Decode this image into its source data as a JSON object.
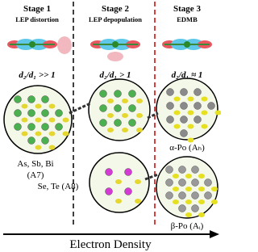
{
  "stages": [
    {
      "title": "Stage 1",
      "subtitle": "LEP distortion",
      "ratio": "d₂/d₁ >> 1"
    },
    {
      "title": "Stage 2",
      "subtitle": "LEP depopulation",
      "ratio": "d₂/d₁ > 1"
    },
    {
      "title": "Stage 3",
      "subtitle": "EDMB",
      "ratio": "d₂/d₁ ≈ 1"
    }
  ],
  "structures": [
    {
      "label": "As, Sb, Bi",
      "sublabel": "(A7)"
    },
    {
      "label": "Se, Te (A8)"
    },
    {
      "label": "α-Po (Aₕ)"
    },
    {
      "label": "β-Po (Aᵢ)"
    }
  ],
  "axis_label": "Electron Density"
}
